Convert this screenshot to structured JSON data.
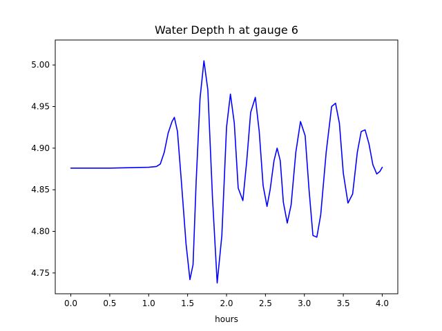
{
  "chart_data": {
    "type": "line",
    "title": "Water Depth h at gauge 6",
    "xlabel": "hours",
    "ylabel": "",
    "xlim": [
      -0.2,
      4.2
    ],
    "ylim": [
      4.725,
      5.03
    ],
    "xticks": [
      0.0,
      0.5,
      1.0,
      1.5,
      2.0,
      2.5,
      3.0,
      3.5,
      4.0
    ],
    "xtick_labels": [
      "0.0",
      "0.5",
      "1.0",
      "1.5",
      "2.0",
      "2.5",
      "3.0",
      "3.5",
      "4.0"
    ],
    "yticks": [
      4.75,
      4.8,
      4.85,
      4.9,
      4.95,
      5.0
    ],
    "ytick_labels": [
      "4.75",
      "4.80",
      "4.85",
      "4.90",
      "4.95",
      "5.00"
    ],
    "grid": false,
    "series": [
      {
        "color": "#0000ff",
        "x": [
          0.0,
          0.5,
          1.0,
          1.1,
          1.15,
          1.2,
          1.25,
          1.3,
          1.33,
          1.37,
          1.42,
          1.48,
          1.53,
          1.57,
          1.61,
          1.66,
          1.71,
          1.76,
          1.82,
          1.88,
          1.94,
          2.0,
          2.05,
          2.1,
          2.15,
          2.21,
          2.26,
          2.31,
          2.37,
          2.42,
          2.47,
          2.52,
          2.56,
          2.61,
          2.65,
          2.69,
          2.73,
          2.78,
          2.83,
          2.89,
          2.95,
          3.01,
          3.06,
          3.11,
          3.16,
          3.21,
          3.28,
          3.35,
          3.4,
          3.45,
          3.5,
          3.56,
          3.62,
          3.68,
          3.73,
          3.78,
          3.83,
          3.88,
          3.93,
          3.97,
          4.0
        ],
        "values": [
          4.876,
          4.876,
          4.877,
          4.878,
          4.881,
          4.895,
          4.918,
          4.932,
          4.937,
          4.92,
          4.86,
          4.785,
          4.742,
          4.76,
          4.86,
          4.96,
          5.005,
          4.97,
          4.84,
          4.738,
          4.795,
          4.925,
          4.965,
          4.93,
          4.852,
          4.837,
          4.885,
          4.943,
          4.961,
          4.92,
          4.855,
          4.83,
          4.85,
          4.885,
          4.9,
          4.885,
          4.835,
          4.81,
          4.832,
          4.895,
          4.932,
          4.915,
          4.85,
          4.795,
          4.793,
          4.82,
          4.895,
          4.95,
          4.954,
          4.93,
          4.87,
          4.834,
          4.845,
          4.895,
          4.92,
          4.922,
          4.905,
          4.88,
          4.869,
          4.872,
          4.877
        ]
      }
    ]
  }
}
